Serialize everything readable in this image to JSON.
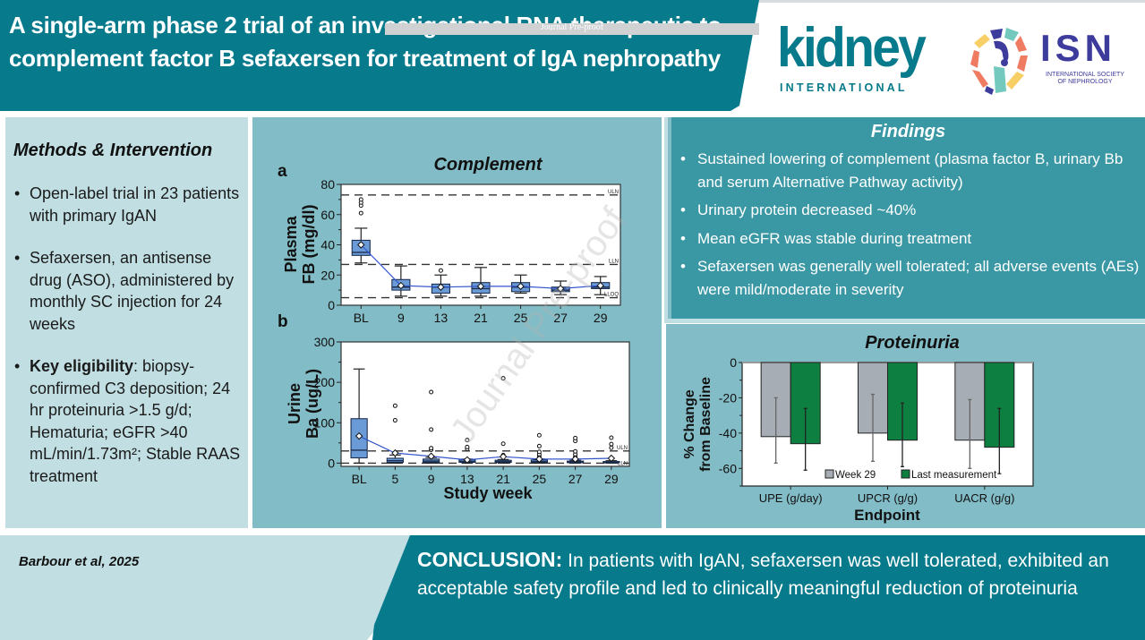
{
  "header": {
    "title": "A single-arm phase 2 trial of an investigational RNA therapeutic to complement factor B sefaxersen for treatment of IgA nephropathy",
    "preproof_label": "Journal Pre-proof"
  },
  "logos": {
    "kidney_word": "kidney",
    "kidney_sub": "INTERNATIONAL",
    "isn_word": "ISN",
    "isn_sub": "INTERNATIONAL SOCIETY OF NEPHROLOGY"
  },
  "methods": {
    "title": "Methods & Intervention",
    "items": [
      {
        "bold": "",
        "text": "Open-label trial in 23 patients with primary IgAN"
      },
      {
        "bold": "",
        "text": "Sefaxersen, an antisense drug (ASO), administered by monthly SC injection for 24 weeks"
      },
      {
        "bold": "Key eligibility",
        "text": ": biopsy-confirmed C3 deposition; 24 hr proteinuria >1.5 g/d; Hematuria; eGFR >40 mL/min/1.73m²; Stable RAAS treatment"
      }
    ]
  },
  "findings": {
    "title": "Findings",
    "items": [
      "Sustained lowering of complement (plasma factor B, urinary Bb and serum Alternative Pathway activity)",
      "Urinary protein decreased ~40%",
      "Mean eGFR was stable during treatment",
      "Sefaxersen was generally well tolerated; all adverse events (AEs) were mild/moderate in severity"
    ]
  },
  "footer": {
    "citation": "Barbour et al, 2025",
    "conclusion_lead": "CONCLUSION:",
    "conclusion_text": " In patients with IgAN, sefaxersen was well tolerated, exhibited an acceptable safety profile and led to clinically meaningful reduction of proteinuria"
  },
  "colors": {
    "brand_teal": "#077a8c",
    "findings_teal": "#3a97a4",
    "panel_light": "#c1dfe3",
    "panel_mid": "#82bcc6",
    "box_fill": "#6b9bd6",
    "mean_line": "#3355cc",
    "bar_week29": "#a7adb4",
    "bar_last": "#0c7f41",
    "isn_purple": "#3d3b9c"
  },
  "watermark": "Journal Pre-proof",
  "chart_data": [
    {
      "type": "box",
      "panel_label": "a",
      "title": "Complement",
      "ylabel": "Plasma FB (mg/dl)",
      "xlabel": "",
      "categories": [
        "BL",
        "9",
        "13",
        "21",
        "25",
        "27",
        "29"
      ],
      "ylim": [
        0,
        80
      ],
      "yticks": [
        0,
        20,
        40,
        60,
        80
      ],
      "reference_lines": [
        {
          "label": "ULN",
          "value": 73
        },
        {
          "label": "LLN",
          "value": 27
        },
        {
          "label": "LLOQ",
          "value": 5
        }
      ],
      "boxes": [
        {
          "min": 28,
          "q1": 33,
          "median": 35,
          "q3": 43,
          "max": 51,
          "mean": 40,
          "outliers": [
            61,
            66,
            68,
            70
          ]
        },
        {
          "min": 6,
          "q1": 10,
          "median": 12,
          "q3": 17,
          "max": 26,
          "mean": 13,
          "outliers": []
        },
        {
          "min": 6,
          "q1": 8,
          "median": 12,
          "q3": 14,
          "max": 20,
          "mean": 12,
          "outliers": [
            23
          ]
        },
        {
          "min": 6,
          "q1": 8,
          "median": 11,
          "q3": 15,
          "max": 25,
          "mean": 12.5,
          "outliers": []
        },
        {
          "min": 8,
          "q1": 9,
          "median": 12,
          "q3": 15,
          "max": 20,
          "mean": 12.5,
          "outliers": []
        },
        {
          "min": 7,
          "q1": 9,
          "median": 10,
          "q3": 12,
          "max": 16,
          "mean": 11,
          "outliers": []
        },
        {
          "min": 7,
          "q1": 11,
          "median": 12,
          "q3": 15,
          "max": 19,
          "mean": 13,
          "outliers": []
        }
      ]
    },
    {
      "type": "box",
      "panel_label": "b",
      "title": "",
      "ylabel": "Urine Ba (ug/L)",
      "xlabel": "Study week",
      "categories": [
        "BL",
        "5",
        "9",
        "13",
        "21",
        "25",
        "27",
        "29"
      ],
      "ylim": [
        -8,
        300
      ],
      "yticks": [
        0,
        100,
        200,
        300
      ],
      "reference_lines": [
        {
          "label": "ULN",
          "value": 30
        },
        {
          "label": "LLN",
          "value": 0
        }
      ],
      "boxes": [
        {
          "min": 0,
          "q1": 13,
          "median": 32,
          "q3": 110,
          "max": 233,
          "mean": 67,
          "outliers": []
        },
        {
          "min": 0,
          "q1": 2,
          "median": 6,
          "q3": 12,
          "max": 20,
          "mean": 25,
          "outliers": [
            106,
            142
          ]
        },
        {
          "min": 0,
          "q1": 2,
          "median": 5,
          "q3": 10,
          "max": 14,
          "mean": 17,
          "outliers": [
            33,
            37,
            83,
            176
          ]
        },
        {
          "min": 0,
          "q1": 2,
          "median": 4,
          "q3": 8,
          "max": 10,
          "mean": 8,
          "outliers": [
            35,
            40,
            57
          ]
        },
        {
          "min": 0,
          "q1": 2,
          "median": 4,
          "q3": 7,
          "max": 9,
          "mean": 16,
          "outliers": [
            18,
            20,
            48,
            210
          ]
        },
        {
          "min": 0,
          "q1": 2,
          "median": 4,
          "q3": 8,
          "max": 10,
          "mean": 10,
          "outliers": [
            17,
            22,
            28,
            42,
            69
          ]
        },
        {
          "min": 0,
          "q1": 1,
          "median": 3,
          "q3": 5,
          "max": 7,
          "mean": 10,
          "outliers": [
            16,
            22,
            29,
            55,
            62
          ]
        },
        {
          "min": 0,
          "q1": 1,
          "median": 2,
          "q3": 4,
          "max": 6,
          "mean": 12,
          "outliers": [
            38,
            47,
            63
          ]
        }
      ]
    },
    {
      "type": "bar",
      "title": "Proteinuria",
      "xlabel": "Endpoint",
      "ylabel": "% Change from Baseline",
      "categories": [
        "UPE (g/day)",
        "UPCR (g/g)",
        "UACR (g/g)"
      ],
      "ylim": [
        -70,
        0
      ],
      "yticks": [
        0,
        -20,
        -40,
        -60
      ],
      "legend_position": "bottom-center",
      "series": [
        {
          "name": "Week 29",
          "values": [
            -42,
            -40,
            -44
          ],
          "error_low": [
            -57,
            -56,
            -60
          ],
          "error_high": [
            -20,
            -18,
            -21
          ]
        },
        {
          "name": "Last measurement",
          "values": [
            -46,
            -44,
            -48
          ],
          "error_low": [
            -61,
            -59,
            -63
          ],
          "error_high": [
            -26,
            -23,
            -26
          ]
        }
      ]
    }
  ]
}
